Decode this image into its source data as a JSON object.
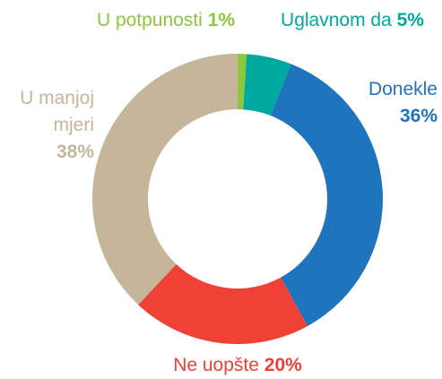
{
  "chart_data": {
    "type": "donut",
    "categories": [
      "U potpunosti",
      "Uglavnom da",
      "Donekle",
      "Ne uopšte",
      "U manjoj mjeri"
    ],
    "values": [
      1,
      5,
      36,
      20,
      38
    ],
    "value_labels": [
      "1%",
      "5%",
      "36%",
      "20%",
      "38%"
    ],
    "colors": [
      "#8dc63f",
      "#00a99d",
      "#1f75bd",
      "#ef4136",
      "#c4b59b"
    ]
  }
}
